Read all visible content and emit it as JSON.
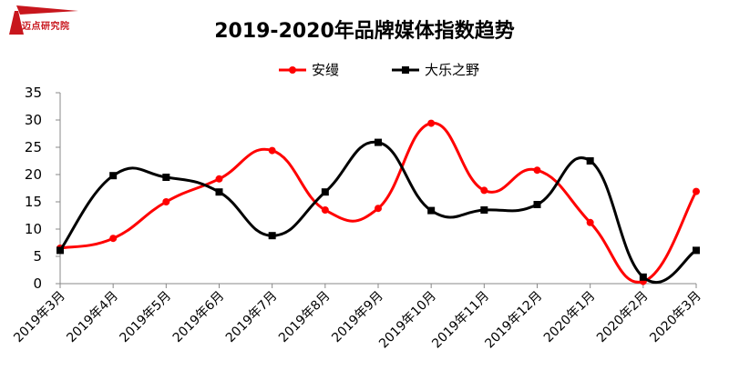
{
  "brand": {
    "logo_text": "迈点研究院",
    "logo_color": "#c8161d"
  },
  "chart_data": {
    "type": "line",
    "title": "2019-2020年品牌媒体指数趋势",
    "categories": [
      "2019年3月",
      "2019年4月",
      "2019年5月",
      "2019年6月",
      "2019年7月",
      "2019年8月",
      "2019年9月",
      "2019年10月",
      "2019年11月",
      "2019年12月",
      "2020年1月",
      "2020年2月",
      "2020年3月"
    ],
    "series": [
      {
        "name": "安缦",
        "color": "#ff0000",
        "marker": "circle",
        "values": [
          6.5,
          8.3,
          15.0,
          19.2,
          24.4,
          13.5,
          13.8,
          29.4,
          17.1,
          20.8,
          11.2,
          0.4,
          16.9
        ]
      },
      {
        "name": "大乐之野",
        "color": "#000000",
        "marker": "square",
        "values": [
          6.1,
          19.8,
          19.5,
          16.8,
          8.8,
          16.8,
          25.9,
          13.4,
          13.5,
          14.5,
          22.5,
          1.2,
          6.1
        ]
      }
    ],
    "ylim": [
      0,
      35
    ],
    "yticks": [
      "0",
      "5",
      "10",
      "15",
      "20",
      "25",
      "30",
      "35"
    ],
    "grid": false,
    "legend_position": "top-center",
    "xlabel": "",
    "ylabel": ""
  }
}
